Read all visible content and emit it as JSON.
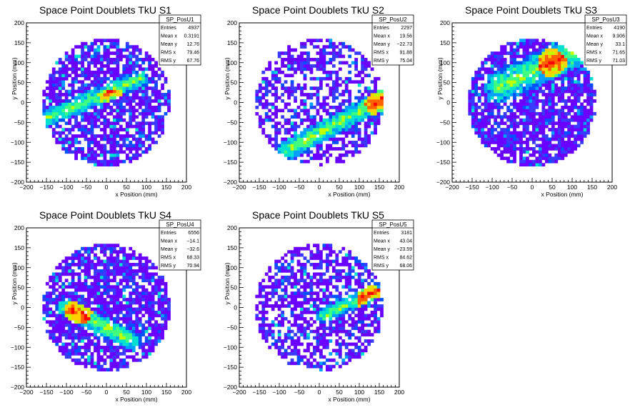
{
  "chart_data": [
    {
      "type": "heatmap",
      "title": "Space Point Doublets TkU S1",
      "xlabel": "x Position (mm)",
      "ylabel": "y Position (mm)",
      "xlim": [
        -200,
        200
      ],
      "ylim": [
        -200,
        200
      ],
      "xticks": [
        "−200",
        "−150",
        "−100",
        "−50",
        "0",
        "50",
        "100",
        "150",
        "200"
      ],
      "yticks": [
        "−200",
        "−150",
        "−100",
        "−50",
        "0",
        "50",
        "100",
        "150",
        "200"
      ],
      "stats": {
        "name": "SP_PosU1",
        "rows": [
          {
            "label": "Entries",
            "value": "4937"
          },
          {
            "label": "Mean x",
            "value": "0.3191"
          },
          {
            "label": "Mean y",
            "value": "12.76"
          },
          {
            "label": "RMS x",
            "value": "79.46"
          },
          {
            "label": "RMS y",
            "value": "67.76"
          }
        ]
      },
      "pattern": {
        "radius": 160,
        "occupancy": 0.74,
        "band": {
          "x0": -150,
          "y0": -40,
          "x1": 80,
          "y1": 60,
          "width": 22
        },
        "peak": [
          20,
          0
        ],
        "seed": 11
      }
    },
    {
      "type": "heatmap",
      "title": "Space Point Doublets TkU S2",
      "xlabel": "x Position (mm)",
      "ylabel": "y Position (mm)",
      "xlim": [
        -200,
        200
      ],
      "ylim": [
        -200,
        200
      ],
      "xticks": [
        "−200",
        "−150",
        "−100",
        "−50",
        "0",
        "50",
        "100",
        "150",
        "200"
      ],
      "yticks": [
        "−200",
        "−150",
        "−100",
        "−50",
        "0",
        "50",
        "100",
        "150",
        "200"
      ],
      "stats": {
        "name": "SP_PosU2",
        "rows": [
          {
            "label": "Entries",
            "value": "2297"
          },
          {
            "label": "Mean x",
            "value": "19.56"
          },
          {
            "label": "Mean y",
            "value": "−22.73"
          },
          {
            "label": "RMS x",
            "value": "91.88"
          },
          {
            "label": "RMS y",
            "value": "75.04"
          }
        ]
      },
      "pattern": {
        "radius": 160,
        "occupancy": 0.55,
        "band": {
          "x0": -80,
          "y0": -120,
          "x1": 160,
          "y1": 10,
          "width": 25
        },
        "peak": [
          150,
          0
        ],
        "seed": 23
      }
    },
    {
      "type": "heatmap",
      "title": "Space Point Doublets TkU S3",
      "xlabel": "x Position (mm)",
      "ylabel": "y Position (mm)",
      "xlim": [
        -200,
        200
      ],
      "ylim": [
        -200,
        200
      ],
      "xticks": [
        "−200",
        "−150",
        "−100",
        "−50",
        "0",
        "50",
        "100",
        "150",
        "200"
      ],
      "yticks": [
        "−200",
        "−150",
        "−100",
        "−50",
        "0",
        "50",
        "100",
        "150",
        "200"
      ],
      "stats": {
        "name": "SP_PosU3",
        "rows": [
          {
            "label": "Entries",
            "value": "4190"
          },
          {
            "label": "Mean x",
            "value": "9.906"
          },
          {
            "label": "Mean y",
            "value": "33.1"
          },
          {
            "label": "RMS x",
            "value": "71.65"
          },
          {
            "label": "RMS y",
            "value": "71.03"
          }
        ]
      },
      "pattern": {
        "radius": 160,
        "occupancy": 0.82,
        "band": {
          "x0": -80,
          "y0": 40,
          "x1": 110,
          "y1": 130,
          "width": 40
        },
        "peak": [
          50,
          100
        ],
        "seed": 37
      }
    },
    {
      "type": "heatmap",
      "title": "Space Point Doublets TkU S4",
      "xlabel": "x Position (mm)",
      "ylabel": "y Position (mm)",
      "xlim": [
        -200,
        200
      ],
      "ylim": [
        -200,
        200
      ],
      "xticks": [
        "−200",
        "−150",
        "−100",
        "−50",
        "0",
        "50",
        "100",
        "150",
        "200"
      ],
      "yticks": [
        "−200",
        "−150",
        "−100",
        "−50",
        "0",
        "50",
        "100",
        "150",
        "200"
      ],
      "stats": {
        "name": "SP_PosU4",
        "rows": [
          {
            "label": "Entries",
            "value": "6556"
          },
          {
            "label": "Mean x",
            "value": "−14.1"
          },
          {
            "label": "Mean y",
            "value": "−32.6"
          },
          {
            "label": "RMS x",
            "value": "68.33"
          },
          {
            "label": "RMS y",
            "value": "70.94"
          }
        ]
      },
      "pattern": {
        "radius": 160,
        "occupancy": 0.8,
        "band": {
          "x0": -100,
          "y0": 0,
          "x1": 60,
          "y1": -80,
          "width": 25
        },
        "peak": [
          -70,
          -10
        ],
        "seed": 41
      }
    },
    {
      "type": "heatmap",
      "title": "Space Point Doublets TkU S5",
      "xlabel": "x Position (mm)",
      "ylabel": "y Position (mm)",
      "xlim": [
        -200,
        200
      ],
      "ylim": [
        -200,
        200
      ],
      "xticks": [
        "−200",
        "−150",
        "−100",
        "−50",
        "0",
        "50",
        "100",
        "150",
        "200"
      ],
      "yticks": [
        "−200",
        "−150",
        "−100",
        "−50",
        "0",
        "50",
        "100",
        "150",
        "200"
      ],
      "stats": {
        "name": "SP_PosU5",
        "rows": [
          {
            "label": "Entries",
            "value": "3181"
          },
          {
            "label": "Mean x",
            "value": "43.04"
          },
          {
            "label": "Mean y",
            "value": "−23.59"
          },
          {
            "label": "RMS x",
            "value": "84.62"
          },
          {
            "label": "RMS y",
            "value": "68.06"
          }
        ]
      },
      "pattern": {
        "radius": 160,
        "occupancy": 0.62,
        "band": {
          "x0": 10,
          "y0": -20,
          "x1": 160,
          "y1": 50,
          "width": 18
        },
        "peak": [
          130,
          20
        ],
        "seed": 53
      }
    }
  ],
  "colors": {
    "palette": [
      "#6a00ff",
      "#3a3aff",
      "#0050ff",
      "#00a0ff",
      "#00e0d0",
      "#40ff80",
      "#c0ff00",
      "#ffd000",
      "#ff6000",
      "#ff0000"
    ],
    "frame": "#000000",
    "background": "#ffffff"
  }
}
